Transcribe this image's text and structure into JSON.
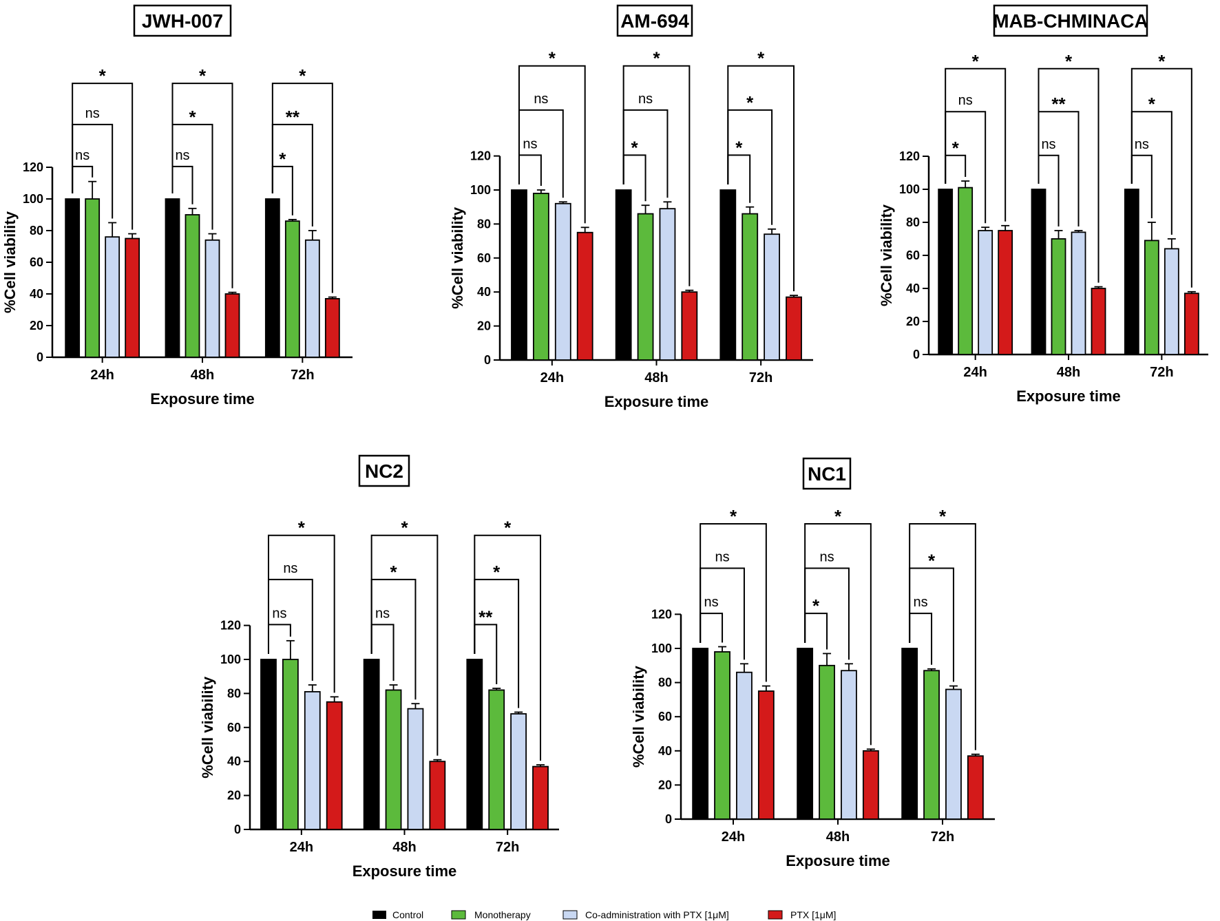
{
  "legend": {
    "items": [
      {
        "label": "Control",
        "color": "#000000"
      },
      {
        "label": "Monotherapy",
        "color": "#5cba3c"
      },
      {
        "label": "Co-administration with PTX [1μM]",
        "color": "#c9d8f2"
      },
      {
        "label": "PTX [1μM]",
        "color": "#d41a1a"
      }
    ]
  },
  "chart_data": [
    {
      "type": "bar",
      "title": "JWH-007",
      "xlabel": "Exposure time",
      "ylabel": "%Cell viability",
      "ylim": [
        0,
        120
      ],
      "yticks": [
        0,
        20,
        40,
        60,
        80,
        100,
        120
      ],
      "categories": [
        "24h",
        "48h",
        "72h"
      ],
      "series": [
        {
          "name": "Control",
          "values": [
            100,
            100,
            100
          ],
          "errors": [
            0,
            0,
            0
          ]
        },
        {
          "name": "Monotherapy",
          "values": [
            100,
            90,
            86
          ],
          "errors": [
            11,
            4,
            1
          ]
        },
        {
          "name": "Co-administration with PTX [1μM]",
          "values": [
            76,
            74,
            74
          ],
          "errors": [
            9,
            4,
            6
          ]
        },
        {
          "name": "PTX [1μM]",
          "values": [
            75,
            40,
            37
          ],
          "errors": [
            3,
            1,
            1
          ]
        }
      ],
      "significance": [
        {
          "category": "24h",
          "labels": [
            "ns",
            "ns",
            "*"
          ]
        },
        {
          "category": "48h",
          "labels": [
            "ns",
            "*",
            "*"
          ]
        },
        {
          "category": "72h",
          "labels": [
            "*",
            "**",
            "*"
          ]
        }
      ]
    },
    {
      "type": "bar",
      "title": "AM-694",
      "xlabel": "Exposure time",
      "ylabel": "%Cell viability",
      "ylim": [
        0,
        120
      ],
      "yticks": [
        0,
        20,
        40,
        60,
        80,
        100,
        120
      ],
      "categories": [
        "24h",
        "48h",
        "72h"
      ],
      "series": [
        {
          "name": "Control",
          "values": [
            100,
            100,
            100
          ],
          "errors": [
            0,
            0,
            0
          ]
        },
        {
          "name": "Monotherapy",
          "values": [
            98,
            86,
            86
          ],
          "errors": [
            2,
            5,
            4
          ]
        },
        {
          "name": "Co-administration with PTX [1μM]",
          "values": [
            92,
            89,
            74
          ],
          "errors": [
            1,
            4,
            3
          ]
        },
        {
          "name": "PTX [1μM]",
          "values": [
            75,
            40,
            37
          ],
          "errors": [
            3,
            1,
            1
          ]
        }
      ],
      "significance": [
        {
          "category": "24h",
          "labels": [
            "ns",
            "ns",
            "*"
          ]
        },
        {
          "category": "48h",
          "labels": [
            "*",
            "ns",
            "*"
          ]
        },
        {
          "category": "72h",
          "labels": [
            "*",
            "*",
            "*"
          ]
        }
      ]
    },
    {
      "type": "bar",
      "title": "MAB-CHMINACA",
      "xlabel": "Exposure time",
      "ylabel": "%Cell viability",
      "ylim": [
        0,
        120
      ],
      "yticks": [
        0,
        20,
        40,
        60,
        80,
        100,
        120
      ],
      "categories": [
        "24h",
        "48h",
        "72h"
      ],
      "series": [
        {
          "name": "Control",
          "values": [
            100,
            100,
            100
          ],
          "errors": [
            0,
            0,
            0
          ]
        },
        {
          "name": "Monotherapy",
          "values": [
            101,
            70,
            69
          ],
          "errors": [
            4,
            5,
            11
          ]
        },
        {
          "name": "Co-administration with PTX [1μM]",
          "values": [
            75,
            74,
            64
          ],
          "errors": [
            2,
            1,
            6
          ]
        },
        {
          "name": "PTX [1μM]",
          "values": [
            75,
            40,
            37
          ],
          "errors": [
            3,
            1,
            1
          ]
        }
      ],
      "significance": [
        {
          "category": "24h",
          "labels": [
            "*",
            "ns",
            "*"
          ]
        },
        {
          "category": "48h",
          "labels": [
            "ns",
            "**",
            "*"
          ]
        },
        {
          "category": "72h",
          "labels": [
            "ns",
            "*",
            "*"
          ]
        }
      ]
    },
    {
      "type": "bar",
      "title": "NC2",
      "xlabel": "Exposure time",
      "ylabel": "%Cell viability",
      "ylim": [
        0,
        120
      ],
      "yticks": [
        0,
        20,
        40,
        60,
        80,
        100,
        120
      ],
      "categories": [
        "24h",
        "48h",
        "72h"
      ],
      "series": [
        {
          "name": "Control",
          "values": [
            100,
            100,
            100
          ],
          "errors": [
            0,
            0,
            0
          ]
        },
        {
          "name": "Monotherapy",
          "values": [
            100,
            82,
            82
          ],
          "errors": [
            11,
            3,
            1
          ]
        },
        {
          "name": "Co-administration with PTX [1μM]",
          "values": [
            81,
            71,
            68
          ],
          "errors": [
            4,
            3,
            1
          ]
        },
        {
          "name": "PTX [1μM]",
          "values": [
            75,
            40,
            37
          ],
          "errors": [
            3,
            1,
            1
          ]
        }
      ],
      "significance": [
        {
          "category": "24h",
          "labels": [
            "ns",
            "ns",
            "*"
          ]
        },
        {
          "category": "48h",
          "labels": [
            "ns",
            "*",
            "*"
          ]
        },
        {
          "category": "72h",
          "labels": [
            "**",
            "*",
            "*"
          ]
        }
      ]
    },
    {
      "type": "bar",
      "title": "NC1",
      "xlabel": "Exposure time",
      "ylabel": "%Cell viability",
      "ylim": [
        0,
        120
      ],
      "yticks": [
        0,
        20,
        40,
        60,
        80,
        100,
        120
      ],
      "categories": [
        "24h",
        "48h",
        "72h"
      ],
      "series": [
        {
          "name": "Control",
          "values": [
            100,
            100,
            100
          ],
          "errors": [
            0,
            0,
            0
          ]
        },
        {
          "name": "Monotherapy",
          "values": [
            98,
            90,
            87
          ],
          "errors": [
            3,
            7,
            1
          ]
        },
        {
          "name": "Co-administration with PTX [1μM]",
          "values": [
            86,
            87,
            76
          ],
          "errors": [
            5,
            4,
            2
          ]
        },
        {
          "name": "PTX [1μM]",
          "values": [
            75,
            40,
            37
          ],
          "errors": [
            3,
            1,
            1
          ]
        }
      ],
      "significance": [
        {
          "category": "24h",
          "labels": [
            "ns",
            "ns",
            "*"
          ]
        },
        {
          "category": "48h",
          "labels": [
            "*",
            "ns",
            "*"
          ]
        },
        {
          "category": "72h",
          "labels": [
            "ns",
            "*",
            "*"
          ]
        }
      ]
    }
  ]
}
